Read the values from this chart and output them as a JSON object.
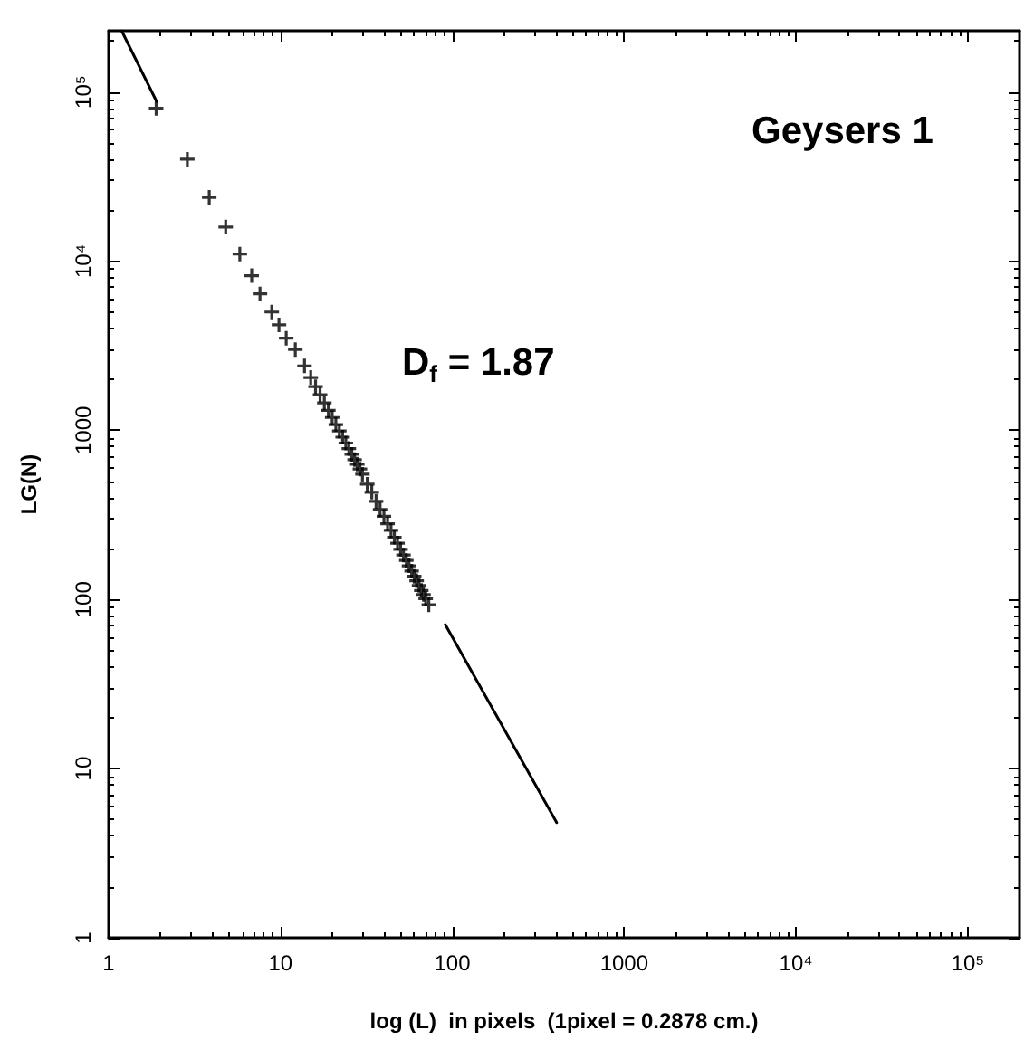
{
  "chart_data": {
    "type": "scatter",
    "xlabel": "log (L)  in pixels  (1pixel = 0.2878 cm.)",
    "ylabel": "LG(N)",
    "annotations": [
      "Geysers 1",
      "D$_{f}$ = 1.87"
    ],
    "log": "xy",
    "grid": false,
    "marker": "cross",
    "xlim": [
      1,
      200000
    ],
    "ylim": [
      1,
      230000
    ],
    "xticks": [
      1,
      10,
      100,
      1000,
      {
        "value": 10000,
        "label": "10⁴"
      },
      {
        "value": 100000,
        "label": "10⁵"
      }
    ],
    "yticks": [
      1,
      10,
      100,
      1000,
      {
        "value": 10000,
        "label": "10⁴"
      },
      {
        "value": 100000,
        "label": "10⁵"
      }
    ],
    "series": [
      {
        "type": "line",
        "marker": "none",
        "line_style": "solid",
        "color": "#000000",
        "x": [
          1.19,
          1.9,
          40,
          91,
          405
        ],
        "values": [
          230000,
          88000,
          null,
          71,
          4.8
        ]
      },
      {
        "color": "#000000",
        "x": [
          1.89,
          2.87,
          3.85,
          4.8,
          5.8,
          6.8,
          7.6,
          8.9,
          9.8,
          10.8,
          12.2,
          13.8,
          15,
          16,
          17,
          18,
          19,
          20,
          21,
          22,
          23,
          24,
          25,
          26,
          27,
          28,
          29,
          30,
          32,
          34,
          36,
          38,
          40,
          42,
          44,
          46,
          48,
          50,
          52,
          54,
          56,
          58,
          60,
          62,
          64,
          66,
          68,
          70,
          73
        ],
        "values": [
          80000,
          40000,
          23800,
          15900,
          11000,
          8200,
          6400,
          5000,
          4200,
          3500,
          3000,
          2400,
          2050,
          1810,
          1620,
          1450,
          1310,
          1190,
          1080,
          990,
          910,
          840,
          780,
          720,
          670,
          630,
          590,
          550,
          480,
          430,
          380,
          340,
          310,
          280,
          256,
          233,
          215,
          198,
          183,
          170,
          158,
          147,
          137,
          129,
          121,
          113,
          107,
          101,
          93
        ]
      }
    ]
  }
}
